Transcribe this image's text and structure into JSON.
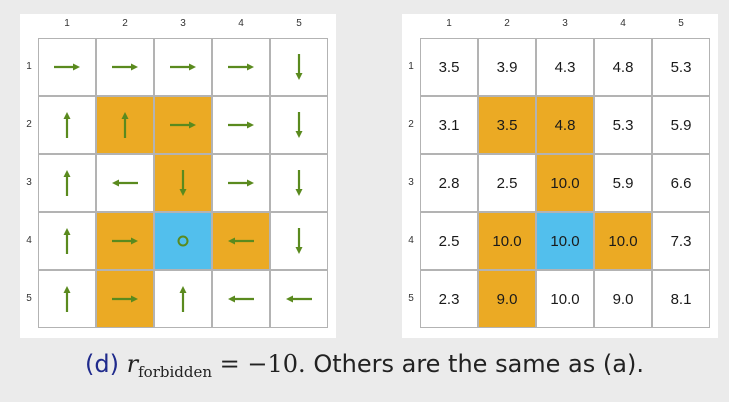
{
  "col_labels": [
    "1",
    "2",
    "3",
    "4",
    "5"
  ],
  "row_labels": [
    "1",
    "2",
    "3",
    "4",
    "5"
  ],
  "colors": {
    "forbidden": "#ebaa24",
    "target": "#52bfed",
    "arrow": "#5a8a1e"
  },
  "policy": [
    [
      "right",
      "right",
      "right",
      "right",
      "down"
    ],
    [
      "up",
      "up",
      "right",
      "right",
      "down"
    ],
    [
      "up",
      "left",
      "down",
      "right",
      "down"
    ],
    [
      "up",
      "right",
      "stay",
      "left",
      "down"
    ],
    [
      "up",
      "right",
      "up",
      "left",
      "left"
    ]
  ],
  "cell_types": [
    [
      "",
      "",
      "",
      "",
      ""
    ],
    [
      "",
      "forbidden",
      "forbidden",
      "",
      ""
    ],
    [
      "",
      "",
      "forbidden",
      "",
      ""
    ],
    [
      "",
      "forbidden",
      "target",
      "forbidden",
      ""
    ],
    [
      "",
      "forbidden",
      "",
      "",
      ""
    ]
  ],
  "values": [
    [
      "3.5",
      "3.9",
      "4.3",
      "4.8",
      "5.3"
    ],
    [
      "3.1",
      "3.5",
      "4.8",
      "5.3",
      "5.9"
    ],
    [
      "2.8",
      "2.5",
      "10.0",
      "5.9",
      "6.6"
    ],
    [
      "2.5",
      "10.0",
      "10.0",
      "10.0",
      "7.3"
    ],
    [
      "2.3",
      "9.0",
      "10.0",
      "9.0",
      "8.1"
    ]
  ],
  "caption": {
    "label": "(d)",
    "symbol": "r",
    "subscript": "forbidden",
    "equation": "= −10.",
    "rest": "Others are the same as (a)."
  }
}
